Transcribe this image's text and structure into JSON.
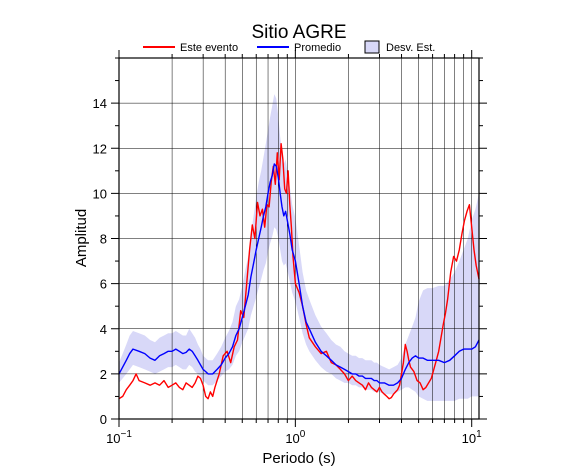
{
  "chart_data": {
    "type": "line",
    "title": "Sitio AGRE",
    "xlabel": "Periodo (s)",
    "ylabel": "Amplitud",
    "x_scale": "log",
    "xlim": [
      0.1,
      11
    ],
    "ylim": [
      0,
      16
    ],
    "grid": true,
    "legend_position": "top",
    "x_tick_labels": [
      {
        "value": 0.1,
        "base": "10",
        "exp": "−1"
      },
      {
        "value": 1,
        "base": "10",
        "exp": "0"
      },
      {
        "value": 10,
        "base": "10",
        "exp": "1"
      }
    ],
    "y_ticks": [
      0,
      2,
      4,
      6,
      8,
      10,
      12,
      14
    ],
    "legend": [
      {
        "label": "Este evento",
        "kind": "line",
        "color": "#ff0000"
      },
      {
        "label": "Promedio",
        "kind": "line",
        "color": "#0000ff"
      },
      {
        "label": "Desv. Est.",
        "kind": "band",
        "color": "#d8d8f8"
      }
    ],
    "series": [
      {
        "name": "Este evento",
        "color": "#ff0000",
        "x": [
          0.1,
          0.105,
          0.11,
          0.115,
          0.12,
          0.125,
          0.13,
          0.14,
          0.15,
          0.16,
          0.17,
          0.18,
          0.19,
          0.2,
          0.21,
          0.22,
          0.23,
          0.24,
          0.25,
          0.26,
          0.27,
          0.28,
          0.29,
          0.3,
          0.31,
          0.32,
          0.33,
          0.34,
          0.35,
          0.37,
          0.39,
          0.41,
          0.43,
          0.45,
          0.47,
          0.49,
          0.51,
          0.53,
          0.55,
          0.57,
          0.59,
          0.61,
          0.63,
          0.65,
          0.67,
          0.69,
          0.71,
          0.73,
          0.75,
          0.77,
          0.79,
          0.81,
          0.83,
          0.85,
          0.87,
          0.89,
          0.91,
          0.93,
          0.95,
          0.97,
          1.0,
          1.05,
          1.1,
          1.15,
          1.2,
          1.3,
          1.4,
          1.5,
          1.6,
          1.7,
          1.8,
          1.9,
          2.0,
          2.1,
          2.2,
          2.3,
          2.4,
          2.5,
          2.6,
          2.7,
          2.8,
          2.9,
          3.0,
          3.1,
          3.2,
          3.3,
          3.4,
          3.5,
          3.6,
          3.7,
          3.8,
          3.9,
          4.0,
          4.1,
          4.2,
          4.3,
          4.4,
          4.5,
          4.7,
          4.9,
          5.1,
          5.3,
          5.5,
          5.7,
          5.9,
          6.1,
          6.3,
          6.5,
          6.7,
          6.9,
          7.1,
          7.3,
          7.6,
          7.9,
          8.2,
          8.5,
          8.8,
          9.1,
          9.4,
          9.7,
          10.0,
          10.3,
          10.6,
          11.0
        ],
        "values": [
          0.9,
          1.0,
          1.3,
          1.5,
          1.7,
          2.0,
          1.7,
          1.6,
          1.5,
          1.6,
          1.5,
          1.7,
          1.4,
          1.5,
          1.6,
          1.4,
          1.3,
          1.6,
          1.5,
          1.4,
          1.6,
          1.9,
          1.8,
          1.5,
          1.0,
          0.9,
          1.2,
          1.0,
          1.4,
          2.0,
          2.8,
          3.0,
          2.5,
          3.2,
          3.5,
          4.8,
          4.5,
          6.0,
          7.5,
          8.6,
          8.0,
          9.6,
          9.0,
          9.3,
          8.5,
          9.5,
          9.4,
          10.5,
          11.2,
          10.4,
          11.8,
          10.6,
          12.2,
          11.5,
          10.2,
          10.0,
          11.0,
          9.5,
          8.5,
          7.2,
          6.0,
          5.6,
          5.0,
          4.2,
          3.6,
          3.2,
          2.9,
          3.0,
          2.5,
          2.4,
          2.2,
          2.0,
          1.7,
          1.9,
          1.7,
          1.6,
          1.5,
          1.3,
          1.6,
          1.4,
          1.3,
          1.2,
          1.4,
          1.2,
          1.1,
          1.0,
          0.9,
          0.95,
          1.1,
          1.2,
          1.3,
          1.5,
          2.0,
          2.5,
          3.3,
          3.0,
          2.6,
          2.3,
          2.1,
          1.7,
          1.6,
          1.3,
          1.4,
          1.6,
          1.8,
          2.2,
          2.6,
          3.0,
          3.6,
          4.2,
          4.7,
          5.3,
          6.5,
          7.2,
          7.0,
          7.5,
          8.2,
          8.8,
          9.2,
          9.5,
          8.5,
          7.5,
          6.8,
          6.2
        ]
      },
      {
        "name": "Promedio",
        "color": "#0000ff",
        "x": [
          0.1,
          0.105,
          0.11,
          0.115,
          0.12,
          0.13,
          0.14,
          0.15,
          0.16,
          0.17,
          0.18,
          0.19,
          0.2,
          0.21,
          0.22,
          0.23,
          0.24,
          0.25,
          0.26,
          0.27,
          0.28,
          0.29,
          0.3,
          0.31,
          0.32,
          0.34,
          0.36,
          0.38,
          0.4,
          0.42,
          0.44,
          0.46,
          0.48,
          0.5,
          0.52,
          0.54,
          0.56,
          0.58,
          0.6,
          0.62,
          0.64,
          0.66,
          0.68,
          0.7,
          0.72,
          0.74,
          0.76,
          0.78,
          0.8,
          0.82,
          0.84,
          0.86,
          0.88,
          0.9,
          0.93,
          0.96,
          1.0,
          1.05,
          1.1,
          1.15,
          1.2,
          1.3,
          1.4,
          1.5,
          1.6,
          1.7,
          1.8,
          1.9,
          2.0,
          2.1,
          2.2,
          2.3,
          2.4,
          2.5,
          2.6,
          2.7,
          2.8,
          2.9,
          3.0,
          3.2,
          3.4,
          3.6,
          3.8,
          4.0,
          4.2,
          4.4,
          4.6,
          4.8,
          5.0,
          5.3,
          5.6,
          6.0,
          6.5,
          7.0,
          7.5,
          8.0,
          8.5,
          9.0,
          9.5,
          10.0,
          10.5,
          11.0
        ],
        "values": [
          2.0,
          2.3,
          2.6,
          2.9,
          3.1,
          3.0,
          2.9,
          2.7,
          2.6,
          2.8,
          2.9,
          3.0,
          3.0,
          3.1,
          3.0,
          2.9,
          2.95,
          3.1,
          3.0,
          2.8,
          2.6,
          2.4,
          2.2,
          2.1,
          2.0,
          2.0,
          2.2,
          2.4,
          2.7,
          2.9,
          3.2,
          3.7,
          4.0,
          4.5,
          5.0,
          5.5,
          6.3,
          6.9,
          7.5,
          8.0,
          8.5,
          9.0,
          9.4,
          10.0,
          10.5,
          10.8,
          11.3,
          11.2,
          10.7,
          10.0,
          9.4,
          9.0,
          9.2,
          8.8,
          8.2,
          7.5,
          7.0,
          6.0,
          5.0,
          4.3,
          4.0,
          3.4,
          3.0,
          2.8,
          2.6,
          2.4,
          2.3,
          2.2,
          2.1,
          2.0,
          2.0,
          1.9,
          1.9,
          1.8,
          1.8,
          1.8,
          1.7,
          1.7,
          1.6,
          1.6,
          1.5,
          1.5,
          1.6,
          1.8,
          2.2,
          2.5,
          2.7,
          2.8,
          2.7,
          2.7,
          2.6,
          2.6,
          2.6,
          2.5,
          2.6,
          2.8,
          3.0,
          3.1,
          3.1,
          3.1,
          3.2,
          3.5
        ]
      },
      {
        "name": "Desv. Est.",
        "kind": "band",
        "color": "#d8d8f8",
        "x": [
          0.1,
          0.105,
          0.11,
          0.115,
          0.12,
          0.13,
          0.14,
          0.15,
          0.16,
          0.17,
          0.18,
          0.19,
          0.2,
          0.21,
          0.22,
          0.23,
          0.24,
          0.25,
          0.26,
          0.27,
          0.28,
          0.29,
          0.3,
          0.31,
          0.32,
          0.34,
          0.36,
          0.38,
          0.4,
          0.42,
          0.44,
          0.46,
          0.48,
          0.5,
          0.52,
          0.54,
          0.56,
          0.58,
          0.6,
          0.62,
          0.64,
          0.66,
          0.68,
          0.7,
          0.72,
          0.74,
          0.76,
          0.78,
          0.8,
          0.82,
          0.84,
          0.86,
          0.88,
          0.9,
          0.93,
          0.96,
          1.0,
          1.05,
          1.1,
          1.15,
          1.2,
          1.3,
          1.4,
          1.5,
          1.6,
          1.7,
          1.8,
          1.9,
          2.0,
          2.1,
          2.2,
          2.3,
          2.4,
          2.5,
          2.6,
          2.7,
          2.8,
          2.9,
          3.0,
          3.2,
          3.4,
          3.6,
          3.8,
          4.0,
          4.2,
          4.4,
          4.6,
          4.8,
          5.0,
          5.3,
          5.6,
          6.0,
          6.5,
          7.0,
          7.5,
          8.0,
          8.5,
          9.0,
          9.5,
          10.0,
          10.5,
          11.0
        ],
        "upper": [
          2.5,
          2.9,
          3.3,
          3.7,
          3.9,
          3.8,
          3.7,
          3.5,
          3.4,
          3.6,
          3.7,
          3.8,
          3.8,
          3.9,
          3.8,
          3.7,
          3.7,
          4.0,
          3.8,
          3.6,
          3.3,
          3.1,
          2.8,
          2.7,
          2.6,
          2.6,
          2.9,
          3.2,
          3.6,
          3.9,
          4.3,
          5.0,
          5.3,
          5.9,
          6.6,
          7.2,
          8.2,
          9.0,
          9.8,
          10.5,
          11.0,
          11.6,
          12.2,
          12.8,
          13.4,
          13.9,
          14.4,
          14.2,
          13.4,
          12.5,
          11.8,
          11.3,
          11.5,
          11.0,
          10.3,
          9.5,
          8.9,
          7.7,
          6.5,
          5.7,
          5.3,
          4.6,
          4.1,
          3.8,
          3.5,
          3.3,
          3.2,
          3.0,
          2.9,
          2.8,
          2.8,
          2.7,
          2.7,
          2.6,
          2.6,
          2.6,
          2.5,
          2.5,
          2.4,
          2.3,
          2.2,
          2.3,
          2.4,
          2.7,
          3.3,
          3.7,
          4.1,
          4.5,
          5.2,
          5.7,
          5.8,
          5.8,
          5.9,
          5.9,
          6.2,
          6.5,
          7.0,
          7.5,
          8.0,
          8.8,
          9.3,
          10.0
        ],
        "lower": [
          1.6,
          1.8,
          2.0,
          2.2,
          2.4,
          2.3,
          2.2,
          2.1,
          2.0,
          2.1,
          2.2,
          2.3,
          2.3,
          2.4,
          2.3,
          2.2,
          2.2,
          2.4,
          2.3,
          2.1,
          2.0,
          1.9,
          1.7,
          1.6,
          1.5,
          1.5,
          1.7,
          1.9,
          2.1,
          2.2,
          2.4,
          2.8,
          3.0,
          3.4,
          3.7,
          4.0,
          4.6,
          5.0,
          5.4,
          5.8,
          6.2,
          6.6,
          6.9,
          7.4,
          7.8,
          8.1,
          8.5,
          8.4,
          8.0,
          7.5,
          7.0,
          6.8,
          6.9,
          6.6,
          6.1,
          5.6,
          5.2,
          4.5,
          3.8,
          3.3,
          3.0,
          2.6,
          2.3,
          2.1,
          2.0,
          1.8,
          1.7,
          1.6,
          1.6,
          1.5,
          1.5,
          1.4,
          1.4,
          1.3,
          1.3,
          1.3,
          1.2,
          1.2,
          1.2,
          1.1,
          1.1,
          1.1,
          1.2,
          1.3,
          1.4,
          1.4,
          1.3,
          1.2,
          1.0,
          0.9,
          0.8,
          0.8,
          0.8,
          0.8,
          0.8,
          0.8,
          0.9,
          0.9,
          0.9,
          1.0,
          1.0,
          1.0
        ]
      }
    ]
  }
}
